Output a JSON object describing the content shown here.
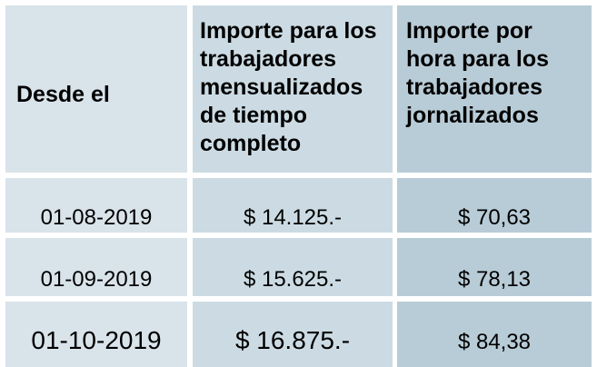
{
  "table": {
    "headers": [
      "Desde el",
      "Importe para los trabajadores mensualizados de tiempo completo",
      "Importe por hora para los trabajadores jornalizados"
    ],
    "header_lines": {
      "col1": [
        "Desde el"
      ],
      "col2": [
        "Importe para los",
        "trabajadores",
        "mensualizados",
        "de tiempo",
        "completo"
      ],
      "col3": [
        "Importe por",
        "hora para los",
        "trabajadores",
        "jornalizados"
      ]
    },
    "rows": [
      {
        "date": "01-08-2019",
        "monthly": "$ 14.125.-",
        "hourly": "$ 70,63"
      },
      {
        "date": "01-09-2019",
        "monthly": "$ 15.625.-",
        "hourly": "$ 78,13"
      },
      {
        "date": "01-10-2019",
        "monthly": "$ 16.875.-",
        "hourly": "$ 84,38"
      }
    ]
  },
  "colors": {
    "col1_bg": "#d9e3ea",
    "col2_bg": "#ccdbe3",
    "col3_bg": "#b8ccd7",
    "grid": "#ffffff"
  }
}
